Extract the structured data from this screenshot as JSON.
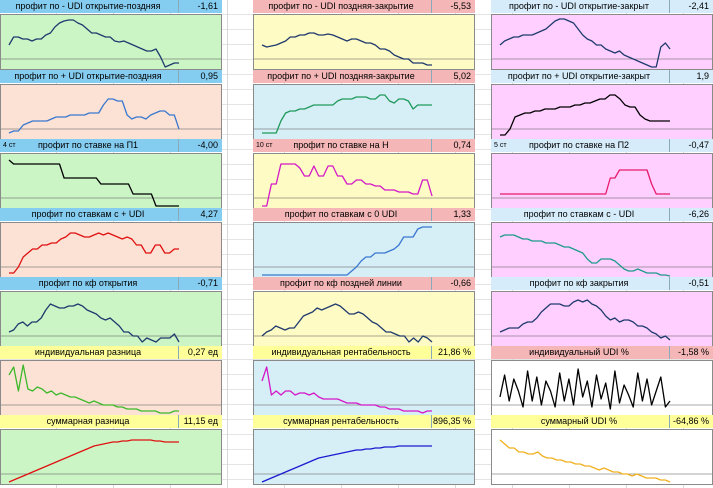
{
  "colors": {
    "green_bg": "#ccf5c6",
    "yellow_bg": "#fffbc4",
    "violet_bg": "#ffd0ff",
    "blue_bg": "#d6eef6",
    "peach_bg": "#fbe2d4",
    "white_bg": "#ffffff",
    "hdr_blue": "#85cdf0",
    "hdr_pink": "#f4b6b6",
    "hdr_light": "#d6ecfa",
    "hdr_yellow": "#ffff9a"
  },
  "panels": [
    {
      "tag": "",
      "title": "профит по - UDI открытие-поздняя",
      "value": "-1,61",
      "hdr": "#85cdf0",
      "bg": "#ccf5c6",
      "line": "#1f3a6e",
      "y": [
        30,
        22,
        22,
        24,
        24,
        26,
        24,
        24,
        20,
        18,
        12,
        8,
        6,
        5,
        5,
        8,
        10,
        14,
        18,
        18,
        20,
        22,
        22,
        26,
        27,
        26,
        28,
        30,
        32,
        34,
        36,
        36,
        34,
        42,
        52,
        50,
        48,
        48
      ]
    },
    {
      "tag": "",
      "title": "профит по - UDI поздняя-закрытие",
      "value": "-5,53",
      "hdr": "#f4b6b6",
      "bg": "#fffbc4",
      "line": "#1f3a6e",
      "y": [
        30,
        32,
        31,
        30,
        28,
        26,
        22,
        22,
        20,
        20,
        18,
        18,
        20,
        20,
        19,
        20,
        22,
        24,
        26,
        24,
        24,
        26,
        28,
        28,
        30,
        34,
        34,
        36,
        40,
        42,
        44,
        44,
        48,
        48,
        48,
        50,
        50
      ]
    },
    {
      "tag": "",
      "title": "профит по - UDI открытие-закрыт",
      "value": "-2,41",
      "hdr": "#d6ecfa",
      "bg": "#ffd0ff",
      "line": "#1f3a6e",
      "y": [
        30,
        26,
        24,
        22,
        22,
        20,
        20,
        20,
        18,
        16,
        14,
        10,
        6,
        4,
        4,
        6,
        8,
        14,
        20,
        24,
        26,
        30,
        30,
        34,
        36,
        38,
        36,
        40,
        42,
        44,
        46,
        48,
        50,
        52,
        52,
        32,
        28,
        34
      ]
    },
    {
      "tag": "",
      "title": "профит по + UDI открытие-поздняя",
      "value": "0,95",
      "hdr": "#85cdf0",
      "bg": "#fbe2d4",
      "line": "#3a78d0",
      "y": [
        48,
        46,
        46,
        40,
        38,
        36,
        36,
        36,
        36,
        34,
        32,
        32,
        32,
        30,
        30,
        30,
        30,
        28,
        28,
        28,
        20,
        14,
        14,
        16,
        16,
        30,
        34,
        32,
        32,
        34,
        30,
        28,
        26,
        26,
        30,
        30,
        44
      ]
    },
    {
      "tag": "",
      "title": "профит по + UDI поздняя-закрытие",
      "value": "5,02",
      "hdr": "#f4b6b6",
      "bg": "#d6eef6",
      "line": "#1f9a5a",
      "y": [
        48,
        48,
        48,
        48,
        36,
        28,
        26,
        26,
        24,
        24,
        22,
        20,
        20,
        20,
        20,
        20,
        16,
        14,
        14,
        14,
        12,
        12,
        12,
        14,
        14,
        10,
        10,
        16,
        18,
        14,
        14,
        16,
        24,
        20,
        20,
        20,
        20
      ]
    },
    {
      "tag": "",
      "title": "профит по + UDI открытие-закрыт",
      "value": "1,9",
      "hdr": "#d6ecfa",
      "bg": "#ffd0ff",
      "line": "#000000",
      "y": [
        50,
        50,
        44,
        32,
        30,
        28,
        28,
        26,
        26,
        24,
        24,
        24,
        22,
        22,
        22,
        20,
        20,
        18,
        18,
        16,
        14,
        14,
        10,
        10,
        14,
        20,
        22,
        22,
        30,
        34,
        36,
        36,
        36,
        36,
        36
      ]
    },
    {
      "tag": "4 ст",
      "title": "профит по ставке на П1",
      "value": "-4,00",
      "hdr": "#85cdf0",
      "bg": "#ccf5c6",
      "line": "#000000",
      "y": [
        6,
        10,
        10,
        10,
        10,
        10,
        10,
        10,
        10,
        10,
        10,
        10,
        24,
        24,
        24,
        24,
        24,
        24,
        24,
        24,
        30,
        30,
        30,
        30,
        30,
        30,
        30,
        40,
        40,
        40,
        40,
        40,
        52,
        52,
        52,
        52,
        52,
        52
      ]
    },
    {
      "tag": "10 ст",
      "title": "профит по ставке на Н",
      "value": "0,74",
      "hdr": "#f4b6b6",
      "bg": "#fffbc4",
      "line": "#d318c8",
      "y": [
        52,
        52,
        30,
        30,
        10,
        10,
        10,
        10,
        14,
        22,
        22,
        12,
        22,
        22,
        12,
        12,
        22,
        22,
        30,
        30,
        26,
        26,
        30,
        30,
        32,
        32,
        36,
        36,
        36,
        38,
        38,
        38,
        40,
        40,
        26,
        26,
        42
      ]
    },
    {
      "tag": "5 ст",
      "title": "профит по ставке на П2",
      "value": "-0,47",
      "hdr": "#d6ecfa",
      "bg": "#ffd0ff",
      "line": "#e8196a",
      "y": [
        40,
        40,
        40,
        40,
        40,
        40,
        40,
        40,
        40,
        40,
        40,
        40,
        40,
        40,
        40,
        40,
        40,
        40,
        40,
        40,
        40,
        40,
        40,
        40,
        24,
        24,
        16,
        16,
        16,
        16,
        16,
        16,
        16,
        30,
        40,
        40,
        40,
        40
      ]
    },
    {
      "tag": "",
      "title": "профит по ставкам с + UDI",
      "value": "4,27",
      "hdr": "#85cdf0",
      "bg": "#fbe2d4",
      "line": "#e01010",
      "y": [
        50,
        50,
        44,
        34,
        30,
        26,
        26,
        22,
        22,
        20,
        20,
        16,
        14,
        10,
        10,
        12,
        14,
        14,
        12,
        10,
        12,
        10,
        12,
        14,
        16,
        14,
        16,
        22,
        22,
        30,
        30,
        22,
        22,
        30,
        30,
        26,
        26
      ]
    },
    {
      "tag": "",
      "title": "профит по ставкам с 0 UDI",
      "value": "1,33",
      "hdr": "#f4b6b6",
      "bg": "#d6eef6",
      "line": "#3a78d0",
      "y": [
        52,
        52,
        52,
        52,
        52,
        52,
        52,
        52,
        52,
        52,
        52,
        52,
        52,
        52,
        52,
        52,
        52,
        52,
        52,
        48,
        44,
        38,
        34,
        34,
        30,
        30,
        30,
        28,
        26,
        22,
        14,
        14,
        14,
        6,
        4,
        4,
        4
      ]
    },
    {
      "tag": "",
      "title": "профит по ставкам с - UDI",
      "value": "-6,26",
      "hdr": "#d6ecfa",
      "bg": "#ffd0ff",
      "line": "#1f9a8a",
      "y": [
        14,
        12,
        12,
        12,
        14,
        16,
        16,
        18,
        18,
        18,
        20,
        20,
        20,
        22,
        24,
        24,
        26,
        28,
        30,
        36,
        40,
        40,
        36,
        36,
        36,
        38,
        42,
        46,
        48,
        48,
        46,
        48,
        50,
        50,
        50,
        52,
        52,
        56
      ]
    },
    {
      "tag": "",
      "title": "профит по кф открытия",
      "value": "-0,71",
      "hdr": "#85cdf0",
      "bg": "#ccf5c6",
      "line": "#1f3a6e",
      "y": [
        40,
        38,
        32,
        30,
        34,
        30,
        30,
        26,
        18,
        12,
        14,
        16,
        16,
        14,
        14,
        12,
        14,
        18,
        20,
        22,
        26,
        28,
        26,
        30,
        34,
        40,
        40,
        44,
        44,
        50,
        46,
        48,
        50,
        46,
        46,
        46,
        42,
        50
      ]
    },
    {
      "tag": "",
      "title": "профит по кф поздней линии",
      "value": "-0,66",
      "hdr": "#f4b6b6",
      "bg": "#fffbc4",
      "line": "#1f3a6e",
      "y": [
        44,
        40,
        38,
        34,
        36,
        38,
        36,
        36,
        30,
        24,
        22,
        20,
        16,
        18,
        16,
        14,
        12,
        14,
        18,
        22,
        22,
        20,
        22,
        26,
        30,
        32,
        36,
        40,
        40,
        42,
        44,
        44,
        50,
        46,
        50,
        44,
        46,
        50
      ]
    },
    {
      "tag": "",
      "title": "профит по кф закрытия",
      "value": "-0,51",
      "hdr": "#d6ecfa",
      "bg": "#ffd0ff",
      "line": "#1f3a6e",
      "y": [
        40,
        38,
        36,
        36,
        36,
        32,
        30,
        30,
        26,
        20,
        16,
        12,
        12,
        12,
        14,
        14,
        10,
        8,
        10,
        8,
        12,
        14,
        18,
        24,
        28,
        26,
        30,
        28,
        28,
        30,
        34,
        34,
        36,
        40,
        42,
        46,
        44,
        48
      ]
    },
    {
      "tag": "",
      "title": "индивидуальная разница",
      "value": "0,27 ед",
      "hdr": "#ffff9a",
      "bg": "#fbe2d4",
      "line": "#3db82b",
      "y": [
        14,
        6,
        30,
        4,
        28,
        30,
        26,
        28,
        32,
        30,
        34,
        32,
        34,
        36,
        36,
        38,
        40,
        42,
        40,
        42,
        44,
        44,
        44,
        46,
        46,
        48,
        48,
        48,
        50,
        50,
        50,
        50,
        52,
        52,
        52,
        50,
        50
      ]
    },
    {
      "tag": "",
      "title": "индивидуальная рентабельность",
      "value": "21,86 %",
      "hdr": "#ffff9a",
      "bg": "#d6eef6",
      "line": "#d318c8",
      "y": [
        20,
        6,
        34,
        30,
        34,
        30,
        30,
        34,
        32,
        32,
        34,
        32,
        36,
        38,
        38,
        38,
        38,
        40,
        42,
        42,
        42,
        44,
        44,
        44,
        44,
        46,
        46,
        48,
        48,
        48,
        50,
        50,
        50,
        50,
        52,
        50,
        50
      ]
    },
    {
      "tag": "",
      "title": "индивидуальный UDI %",
      "value": "-1,58 %",
      "hdr": "#f4b6b6",
      "bg": "#ffffff",
      "line": "#000000",
      "y": [
        36,
        14,
        40,
        18,
        30,
        46,
        10,
        40,
        16,
        44,
        20,
        30,
        46,
        12,
        40,
        18,
        44,
        8,
        36,
        20,
        46,
        14,
        38,
        22,
        48,
        10,
        42,
        24,
        34,
        46,
        12,
        40,
        18,
        44,
        30,
        16,
        46,
        40
      ]
    },
    {
      "tag": "",
      "title": "суммарная разница",
      "value": "11,15 ед",
      "hdr": "#ffff9a",
      "bg": "#ccf5c6",
      "line": "#e01010",
      "y": [
        52,
        50,
        48,
        46,
        44,
        42,
        40,
        38,
        36,
        34,
        32,
        30,
        28,
        26,
        24,
        22,
        20,
        18,
        16,
        15,
        14,
        13,
        12,
        12,
        11,
        11,
        10,
        10,
        10,
        10,
        10,
        11,
        11,
        12,
        12,
        12,
        12
      ]
    },
    {
      "tag": "",
      "title": "суммарная рентабельность",
      "value": "896,35 %",
      "hdr": "#ffff9a",
      "bg": "#d6eef6",
      "line": "#1a1ad0",
      "y": [
        52,
        50,
        48,
        46,
        44,
        42,
        40,
        38,
        36,
        34,
        32,
        30,
        28,
        27,
        26,
        25,
        24,
        23,
        22,
        21,
        20,
        20,
        19,
        19,
        18,
        18,
        17,
        17,
        17,
        16,
        16,
        16,
        16,
        16,
        16,
        16,
        16
      ]
    },
    {
      "tag": "",
      "title": "суммарный UDI %",
      "value": "-64,86 %",
      "hdr": "#ffff9a",
      "bg": "#ffffff",
      "line": "#f0b020",
      "y": [
        10,
        14,
        18,
        18,
        22,
        22,
        24,
        24,
        22,
        26,
        28,
        28,
        30,
        30,
        32,
        32,
        34,
        34,
        36,
        36,
        38,
        40,
        38,
        40,
        42,
        42,
        44,
        44,
        46,
        44,
        46,
        48,
        48,
        48,
        50,
        50,
        52
      ]
    }
  ]
}
